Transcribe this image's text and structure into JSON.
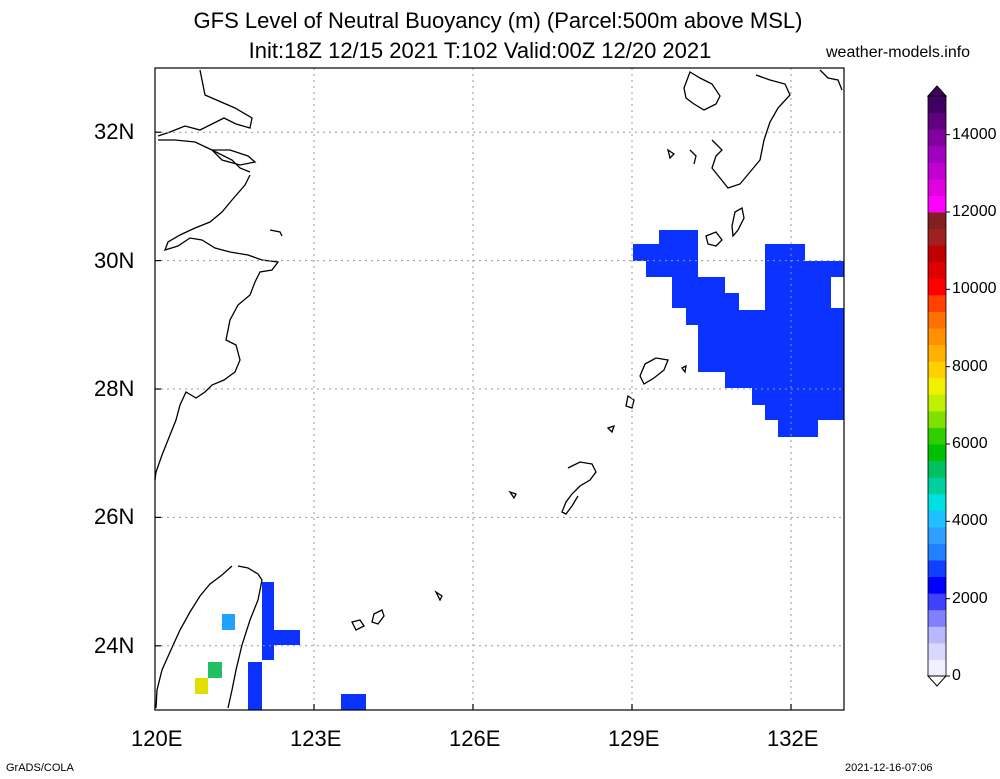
{
  "title_line1": "GFS Level of Neutral Buoyancy (m) (Parcel:500m above MSL)",
  "title_line2": "Init:18Z 12/15 2021 T:102 Valid:00Z 12/20 2021",
  "site": "weather-models.info",
  "credit": "GrADS/COLA",
  "timestamp": "2021-12-16-07:06",
  "map": {
    "lon_range": [
      120,
      133
    ],
    "lat_range": [
      23,
      33
    ],
    "lon_ticks": [
      "120E",
      "123E",
      "126E",
      "129E",
      "132E"
    ],
    "lat_ticks": [
      "24N",
      "26N",
      "28N",
      "30N",
      "32N"
    ],
    "grid": "dotted"
  },
  "colorbar": {
    "range": [
      0,
      15000
    ],
    "tick_labels": [
      "0",
      "2000",
      "4000",
      "6000",
      "8000",
      "10000",
      "12000",
      "14000"
    ],
    "colors": [
      "#f0f0ff",
      "#d8d8ff",
      "#b8b8ff",
      "#8080ff",
      "#4040ff",
      "#0000ff",
      "#1040ff",
      "#2080ff",
      "#30a0ff",
      "#20c0ff",
      "#00e0e0",
      "#00d0a0",
      "#00c060",
      "#00c000",
      "#30d000",
      "#80e000",
      "#c0f000",
      "#f0f000",
      "#ffd000",
      "#ffb000",
      "#ff9000",
      "#ff7000",
      "#ff4000",
      "#ff0000",
      "#e00000",
      "#c00000",
      "#a02020",
      "#802020",
      "#ff00ff",
      "#e000e0",
      "#c000d0",
      "#a000c0",
      "#8000a0",
      "#600080",
      "#400060"
    ]
  }
}
